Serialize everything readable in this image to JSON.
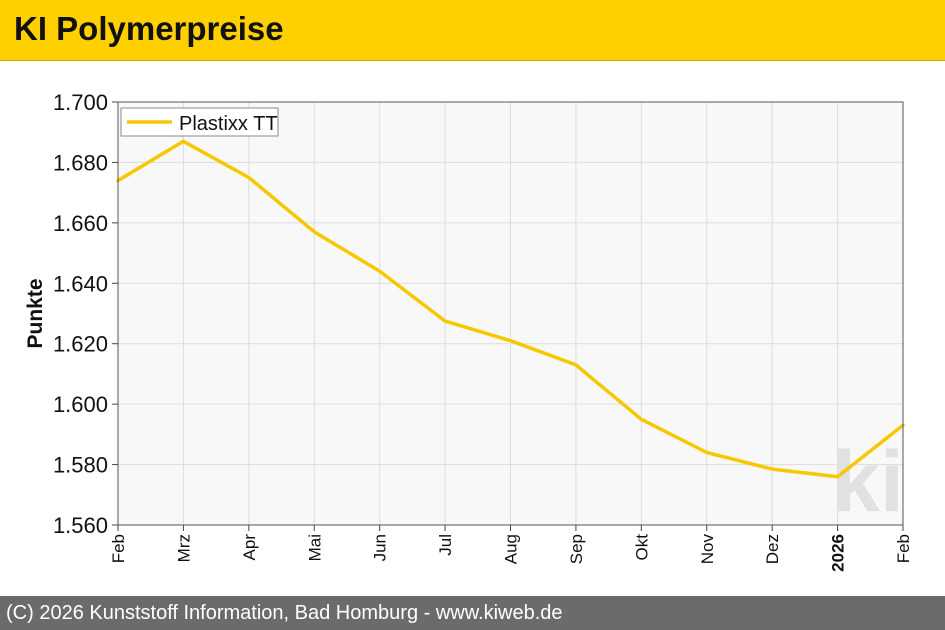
{
  "header": {
    "title": "KI Polymerpreise"
  },
  "footer": {
    "text": "(C) 2026 Kunststoff Information, Bad Homburg - www.kiweb.de"
  },
  "watermark": {
    "text": "ki"
  },
  "colors": {
    "brand_yellow": "#ffd000",
    "series_line": "#f5c800",
    "footer_gray": "#6b6b6b",
    "plot_background": "#f8f8f8",
    "grid": "#dddddd"
  },
  "chart_data": {
    "type": "line",
    "title": "",
    "xlabel": "",
    "ylabel": "Punkte",
    "categories": [
      "Feb",
      "Mrz",
      "Apr",
      "Mai",
      "Jun",
      "Jul",
      "Aug",
      "Sep",
      "Okt",
      "Nov",
      "Dez",
      "2026",
      "Feb"
    ],
    "bold_categories": [
      "2026"
    ],
    "ylim": [
      1560,
      1700
    ],
    "y_ticks": [
      1560,
      1580,
      1600,
      1620,
      1640,
      1660,
      1680,
      1700
    ],
    "y_tick_labels": [
      "1.560",
      "1.580",
      "1.600",
      "1.620",
      "1.640",
      "1.660",
      "1.680",
      "1.700"
    ],
    "grid": true,
    "legend_position": "top-left",
    "series": [
      {
        "name": "Plastixx TT",
        "values": [
          1674,
          1687,
          1675,
          1657,
          1644,
          1627.5,
          1621,
          1613,
          1595,
          1584,
          1578.5,
          1576,
          1593
        ]
      }
    ]
  }
}
